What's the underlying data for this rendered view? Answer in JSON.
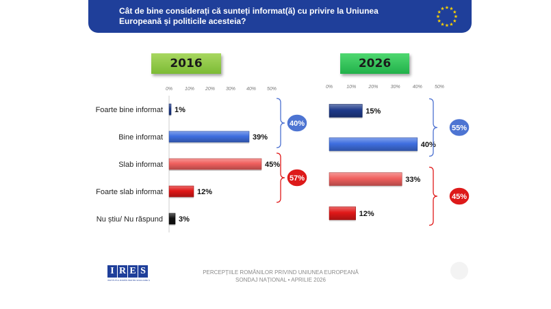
{
  "header": {
    "question": "Cât de bine considerați că sunteți informat(ă) cu privire la Uniunea Europeană și politicile acesteia?",
    "flag_icon": "eu-flag-icon"
  },
  "colors": {
    "header_bg": "#1f3f9a",
    "dark_blue": "#1e3a8a",
    "blue": "#3f6fe0",
    "red_light": "#f0605e",
    "red": "#e01818",
    "black": "#111111",
    "bracket_blue": "#4a6fd0",
    "bracket_red": "#e01818"
  },
  "chart_data": [
    {
      "type": "bar",
      "title": "2016",
      "categories": [
        "Foarte bine informat",
        "Bine informat",
        "Slab informat",
        "Foarte slab informat",
        "Nu știu/ Nu răspund"
      ],
      "values": [
        1,
        39,
        45,
        12,
        3
      ],
      "value_labels": [
        "1%",
        "39%",
        "45%",
        "12%",
        "3%"
      ],
      "bar_colors": [
        "dark_blue",
        "blue",
        "red_light",
        "red",
        "black"
      ],
      "xlim": [
        0,
        50
      ],
      "ticks": [
        "0%",
        "10%",
        "20%",
        "30%",
        "40%",
        "50%"
      ],
      "groups": [
        {
          "label": "40%",
          "from": 0,
          "to": 1,
          "color": "blue"
        },
        {
          "label": "57%",
          "from": 2,
          "to": 3,
          "color": "red"
        }
      ]
    },
    {
      "type": "bar",
      "title": "2026",
      "categories": [
        "",
        "",
        "",
        ""
      ],
      "values": [
        15,
        40,
        33,
        12
      ],
      "value_labels": [
        "15%",
        "40%",
        "33%",
        "12%"
      ],
      "bar_colors": [
        "dark_blue",
        "blue",
        "red_light",
        "red"
      ],
      "xlim": [
        0,
        50
      ],
      "ticks": [
        "0%",
        "10%",
        "20%",
        "30%",
        "40%",
        "50%"
      ],
      "groups": [
        {
          "label": "55%",
          "from": 0,
          "to": 1,
          "color": "blue"
        },
        {
          "label": "45%",
          "from": 2,
          "to": 3,
          "color": "red"
        }
      ]
    }
  ],
  "footer": {
    "logo_text": "IRES",
    "logo_subtitle": "INSTITUTUL ROMÂN PENTRU EVALUARE ȘI STRATEGIE",
    "line1": "PERCEPȚIILE ROMÂNILOR PRIVIND UNIUNEA EUROPEANĂ",
    "line2": "SONDAJ NAȚIONAL • APRILIE 2026"
  }
}
